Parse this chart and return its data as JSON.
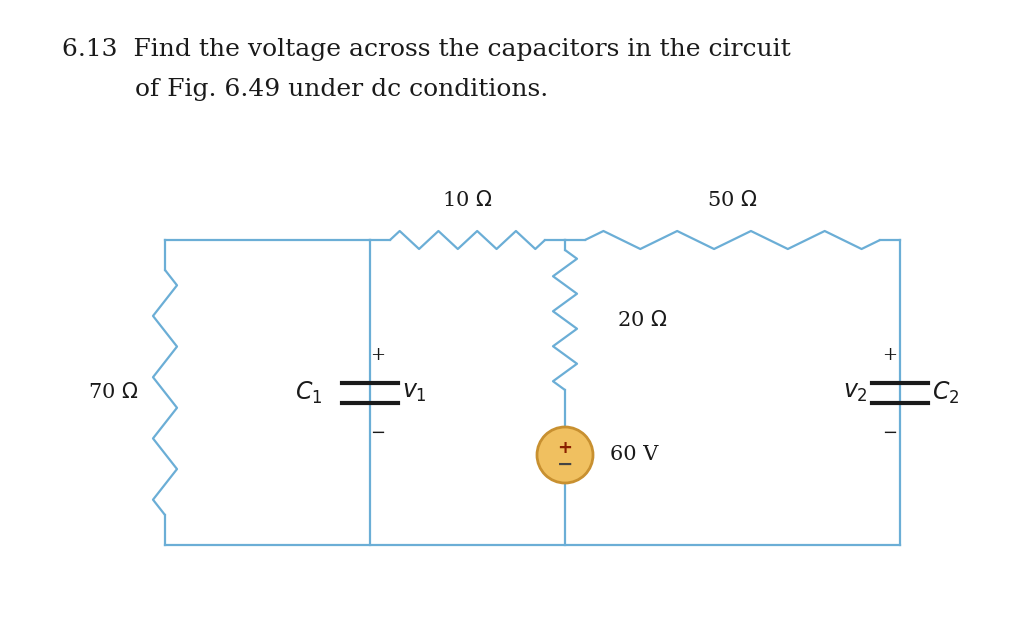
{
  "title_line1": "6.13  Find the voltage across the capacitors in the circuit",
  "title_line2": "of Fig. 6.49 under dc conditions.",
  "bg_color": "#ffffff",
  "circuit_line_color": "#6baed6",
  "text_color": "#1a1a1a",
  "voltage_source_fill": "#f0c060",
  "voltage_source_ring": "#c89030",
  "title_fontsize": 18,
  "label_fontsize": 15,
  "component_fontsize": 17,
  "lw": 1.6
}
